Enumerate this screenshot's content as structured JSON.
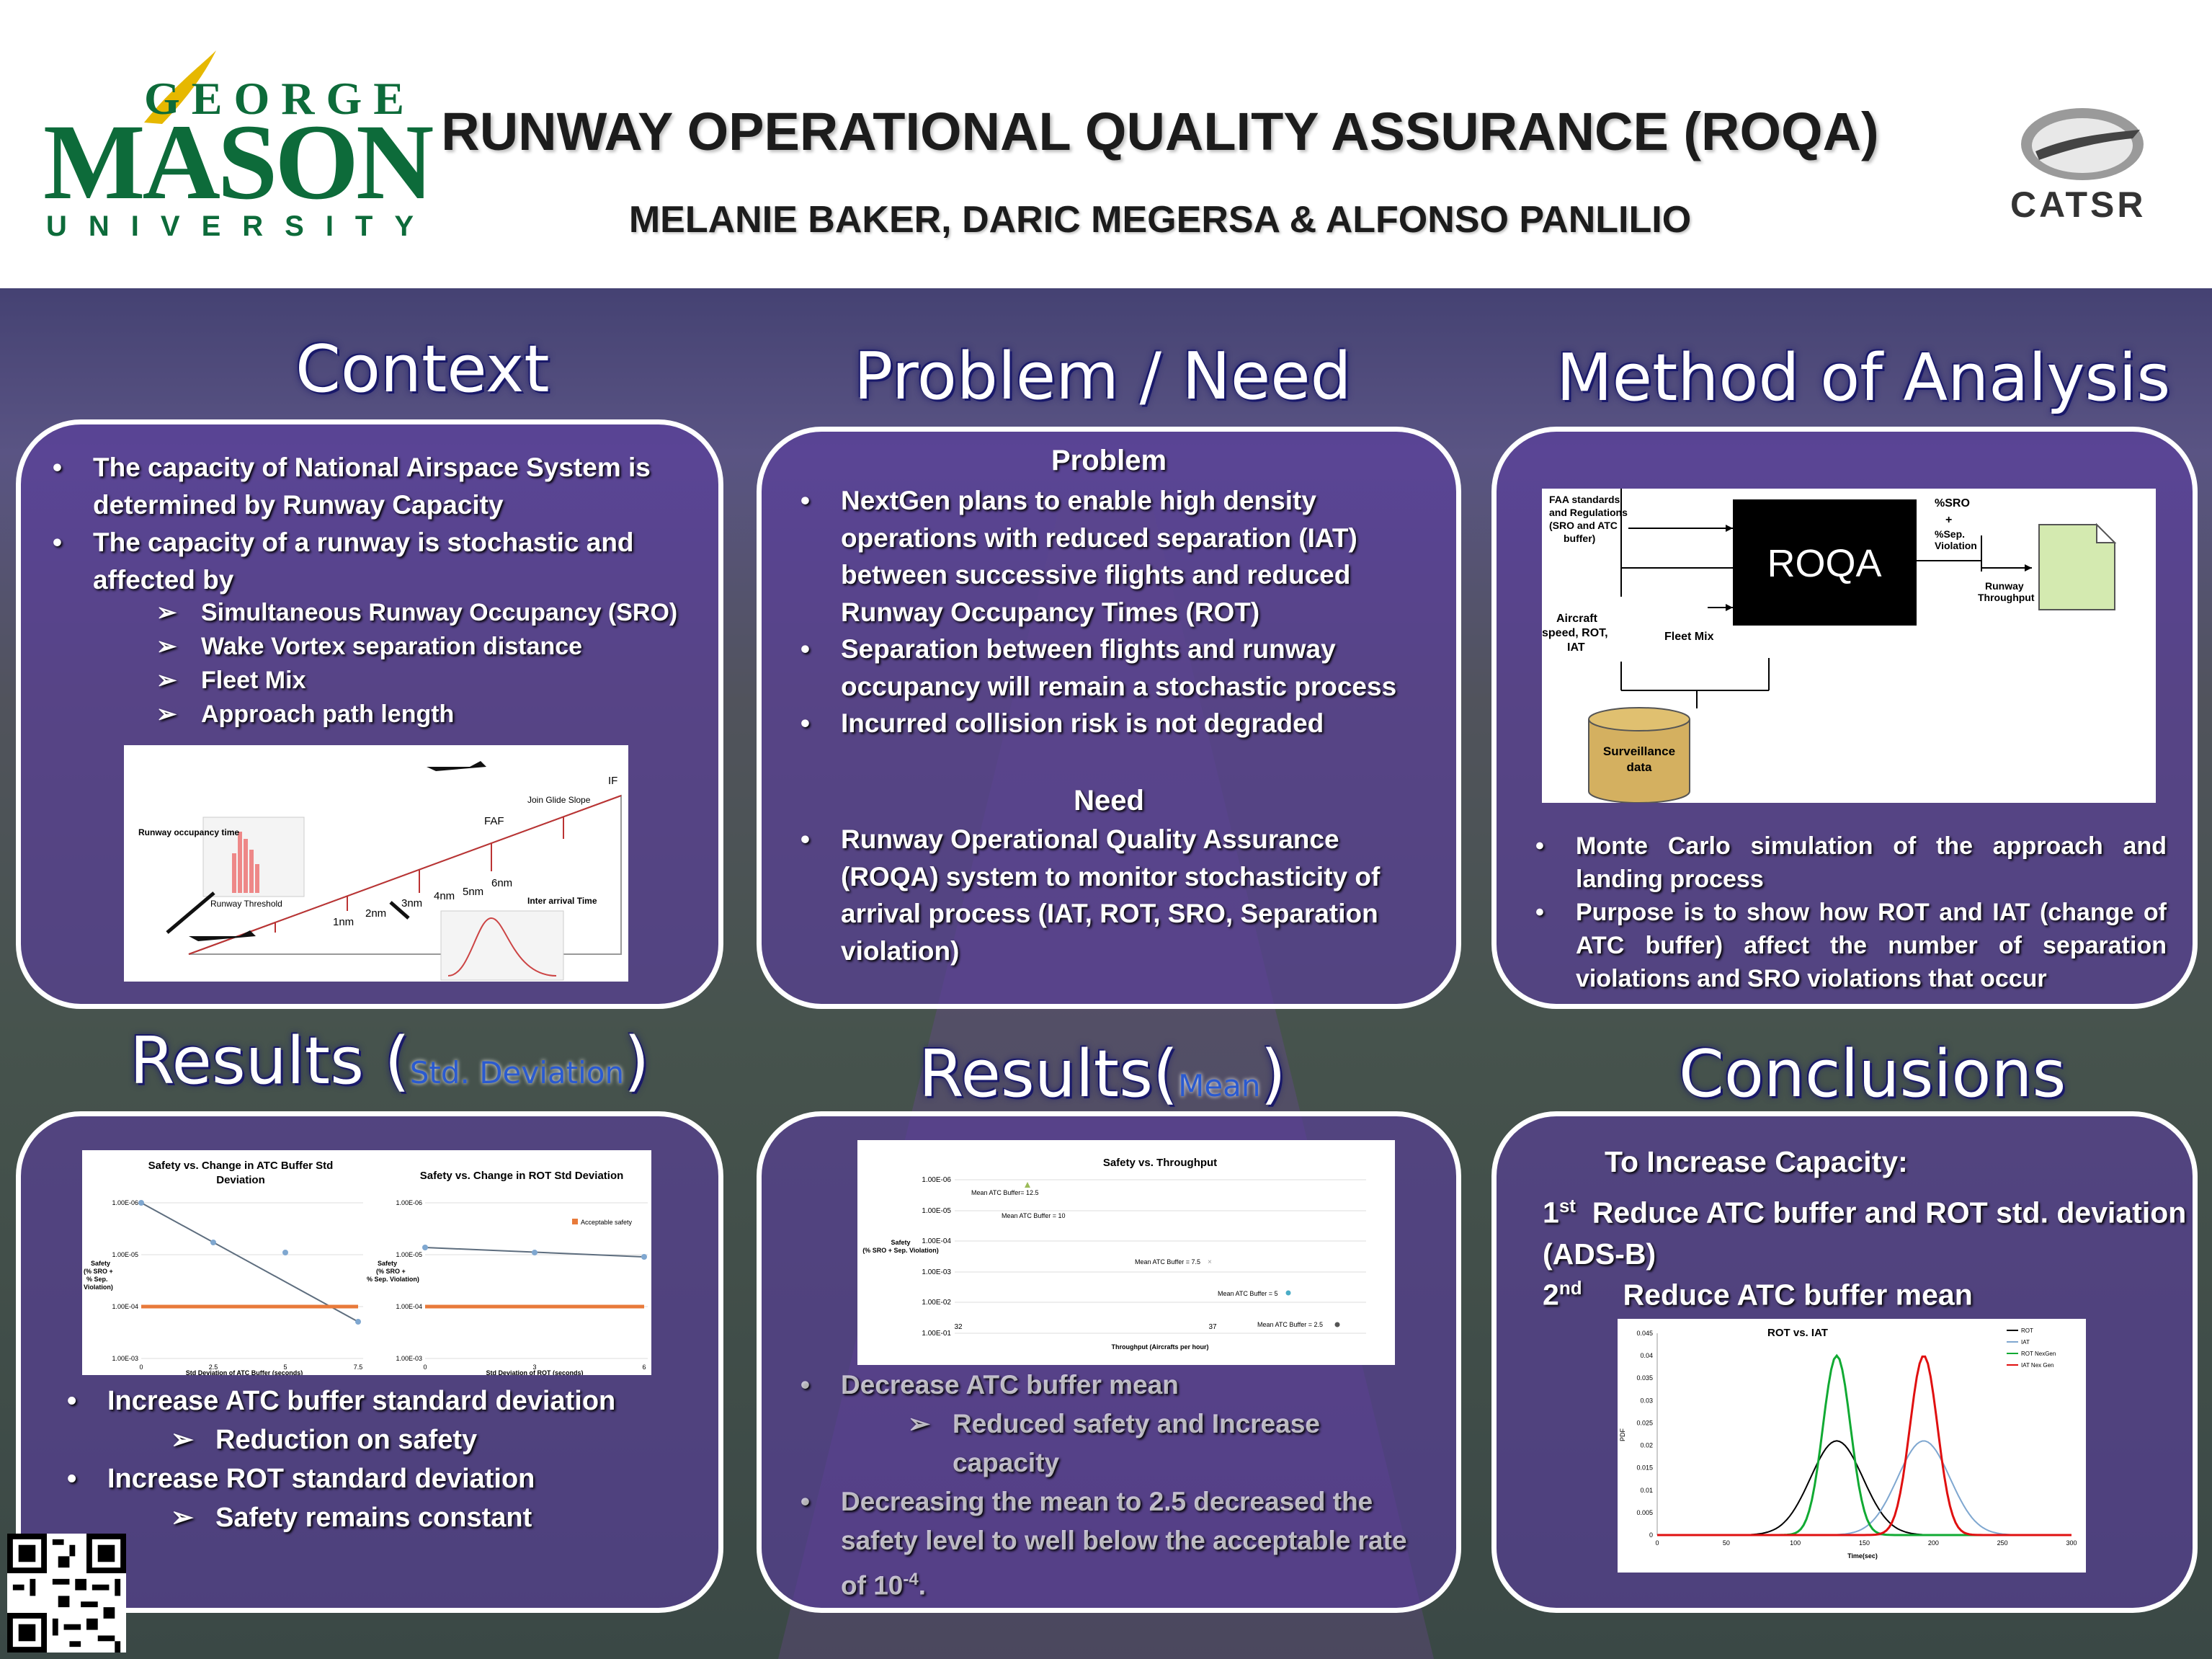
{
  "header": {
    "logo_george": "GEORGE",
    "logo_mason": "MASON",
    "logo_university": "UNIVERSITY",
    "title": "RUNWAY  OPERATIONAL QUALITY ASSURANCE (ROQA)",
    "authors": "MELANIE BAKER, DARIC MEGERSA & ALFONSO PANLILIO",
    "catsr": "CATSR"
  },
  "context": {
    "title": "Context",
    "bullets": [
      "The capacity of National Airspace System is determined by Runway Capacity",
      "The capacity of a runway is stochastic and affected by"
    ],
    "sub": [
      "Simultaneous Runway Occupancy (SRO)",
      "Wake Vortex separation distance",
      "Fleet Mix",
      "Approach path length"
    ],
    "figure": {
      "labels": [
        "IF",
        "Join Glide Slope",
        "FAF",
        "6nm",
        "5nm",
        "4nm",
        "3nm",
        "2nm",
        "1nm",
        "Runway Threshold",
        "Runway occupancy time",
        "Inter arrival Time"
      ]
    }
  },
  "problem": {
    "title": "Problem / Need",
    "problem_heading": "Problem",
    "problem_bullets": [
      "NextGen plans to enable high density operations with reduced separation (IAT) between successive flights and reduced Runway Occupancy Times (ROT)",
      "Separation between flights and runway occupancy will remain a stochastic process",
      "Incurred collision risk  is not degraded"
    ],
    "need_heading": "Need",
    "need_bullets": [
      "Runway Operational Quality Assurance (ROQA) system to monitor stochasticity of arrival process (IAT, ROT, SRO, Separation violation)"
    ]
  },
  "method": {
    "title": "Method of Analysis",
    "diagram": {
      "faa": "FAA standards and Regulations (SRO and ATC buffer)",
      "roqa": "ROQA",
      "sro": "%SRO",
      "plus": "+",
      "sep": "%Sep. Violation",
      "throughput": "Runway Throughput",
      "aircraft": "Aircraft speed, ROT, IAT",
      "fleet": "Fleet Mix",
      "surveillance": "Surveillance data"
    },
    "bullets": [
      "Monte Carlo simulation of the approach and landing process",
      "Purpose is to show how ROT and IAT (change of ATC buffer) affect the number of separation violations and SRO violations that occur"
    ]
  },
  "results_std": {
    "title_main": "Results (",
    "title_small": "Std. Deviation",
    "title_close": ")",
    "bullets": [
      "Increase ATC buffer standard deviation",
      "Increase ROT standard deviation"
    ],
    "subs": [
      "Reduction on safety",
      "Safety remains constant"
    ],
    "chart1": {
      "title": "Safety vs. Change in ATC Buffer Std Deviation",
      "ylabel": "Safety (% SRO + % Sep. Violation)",
      "xlabel": "Std Deviation of ATC Buffer (seconds)"
    },
    "chart2": {
      "title": "Safety vs. Change in ROT Std Deviation",
      "ylabel": "Safety (% SRO + % Sep. Violation)",
      "xlabel": "Std Deviation of ROT (seconds)",
      "legend": "Acceptable safety"
    }
  },
  "results_mean": {
    "title_main": "Results(",
    "title_small": "Mean",
    "title_close": ")",
    "chart": {
      "title": "Safety vs. Throughput",
      "ylabel": "Safety (% SRO + Sep. Violation)",
      "xlabel": "Throughput (Aircrafts per hour)"
    },
    "bullets": [
      "Decrease ATC buffer mean",
      "Decreasing the mean to 2.5 decreased the safety level to well below the acceptable rate of 10"
    ],
    "sub": "Reduced safety and Increase capacity",
    "superscript": "-4",
    "trailing": "."
  },
  "conclusions": {
    "title": "Conclusions",
    "heading": "To Increase Capacity:",
    "line1_num": "1",
    "line1_sup": "st",
    "line1_text": "Reduce ATC buffer and ROT std. deviation (ADS-B)",
    "line2_num": "2",
    "line2_sup": "nd",
    "line2_text": "Reduce ATC buffer mean",
    "chart": {
      "title": "ROT vs. IAT",
      "ylabel": "PDF",
      "xlabel": "Time(sec)"
    }
  },
  "chart_data": [
    {
      "type": "scatter",
      "title": "Safety vs. Change in ATC Buffer Std Deviation",
      "xlabel": "Std Deviation of ATC Buffer (seconds)",
      "ylabel": "Safety (% SRO + % Sep. Violation)",
      "x_ticks": [
        "0",
        "2.5",
        "5",
        "7.5"
      ],
      "y_ticks": [
        "1.00E-03",
        "1.00E-04",
        "1.00E-05",
        "1.00E-06"
      ],
      "series": [
        {
          "values": [
            {
              "x": 0,
              "y": 1e-06
            },
            {
              "x": 2.5,
              "y": 6e-06
            },
            {
              "x": 5,
              "y": 8e-06
            },
            {
              "x": 7.5,
              "y": 0.00016
            }
          ]
        },
        {
          "values": [
            {
              "x": 0,
              "y": 0.0001
            },
            {
              "x": 7.5,
              "y": 0.0001
            }
          ]
        }
      ]
    },
    {
      "type": "scatter",
      "title": "Safety vs. Change in ROT Std Deviation",
      "xlabel": "Std Deviation of ROT (seconds)",
      "ylabel": "Safety (% SRO + % Sep. Violation)",
      "x_ticks": [
        "0",
        "3",
        "6"
      ],
      "y_ticks": [
        "1.00E-03",
        "1.00E-04",
        "1.00E-05",
        "1.00E-06"
      ],
      "series": [
        {
          "values": [
            {
              "x": 0,
              "y": 8e-06
            },
            {
              "x": 3,
              "y": 1.1e-05
            },
            {
              "x": 6,
              "y": 1.2e-05
            }
          ]
        },
        {
          "name": "Acceptable safety",
          "values": [
            {
              "x": 0,
              "y": 0.0001
            },
            {
              "x": 6,
              "y": 0.0001
            }
          ]
        }
      ]
    },
    {
      "type": "scatter",
      "title": "Safety vs. Throughput",
      "xlabel": "Throughput (Aircrafts per hour)",
      "ylabel": "Safety (% SRO + Sep. Violation)",
      "x_ticks": [
        "32",
        "37"
      ],
      "y_ticks": [
        "1.00E-06",
        "1.00E-05",
        "1.00E-04",
        "1.00E-03",
        "1.00E-02",
        "1.00E-01"
      ],
      "points": [
        {
          "label": "Mean ATC Buffer= 12.5"
        },
        {
          "label": "Mean ATC Buffer = 10"
        },
        {
          "label": "Mean ATC Buffer = 7.5"
        },
        {
          "label": "Mean ATC Buffer = 5"
        },
        {
          "label": "Mean ATC Buffer = 2.5"
        }
      ]
    },
    {
      "type": "line",
      "title": "ROT vs. IAT",
      "xlabel": "Time(sec)",
      "ylabel": "PDF",
      "x_ticks": [
        "0",
        "50",
        "100",
        "150",
        "200",
        "250",
        "300"
      ],
      "y_ticks": [
        "0",
        "0.005",
        "0.01",
        "0.015",
        "0.02",
        "0.025",
        "0.03",
        "0.035",
        "0.04",
        "0.045"
      ],
      "series": [
        {
          "name": "ROT",
          "color": "#000000",
          "mean": 130,
          "peak": 0.021
        },
        {
          "name": "IAT",
          "color": "#7fa7d0",
          "mean": 193,
          "peak": 0.021
        },
        {
          "name": "ROT NexGen",
          "color": "#11aa33",
          "mean": 130,
          "peak": 0.04
        },
        {
          "name": "IAT Nex Gen",
          "color": "#e01010",
          "mean": 193,
          "peak": 0.04
        }
      ]
    }
  ]
}
